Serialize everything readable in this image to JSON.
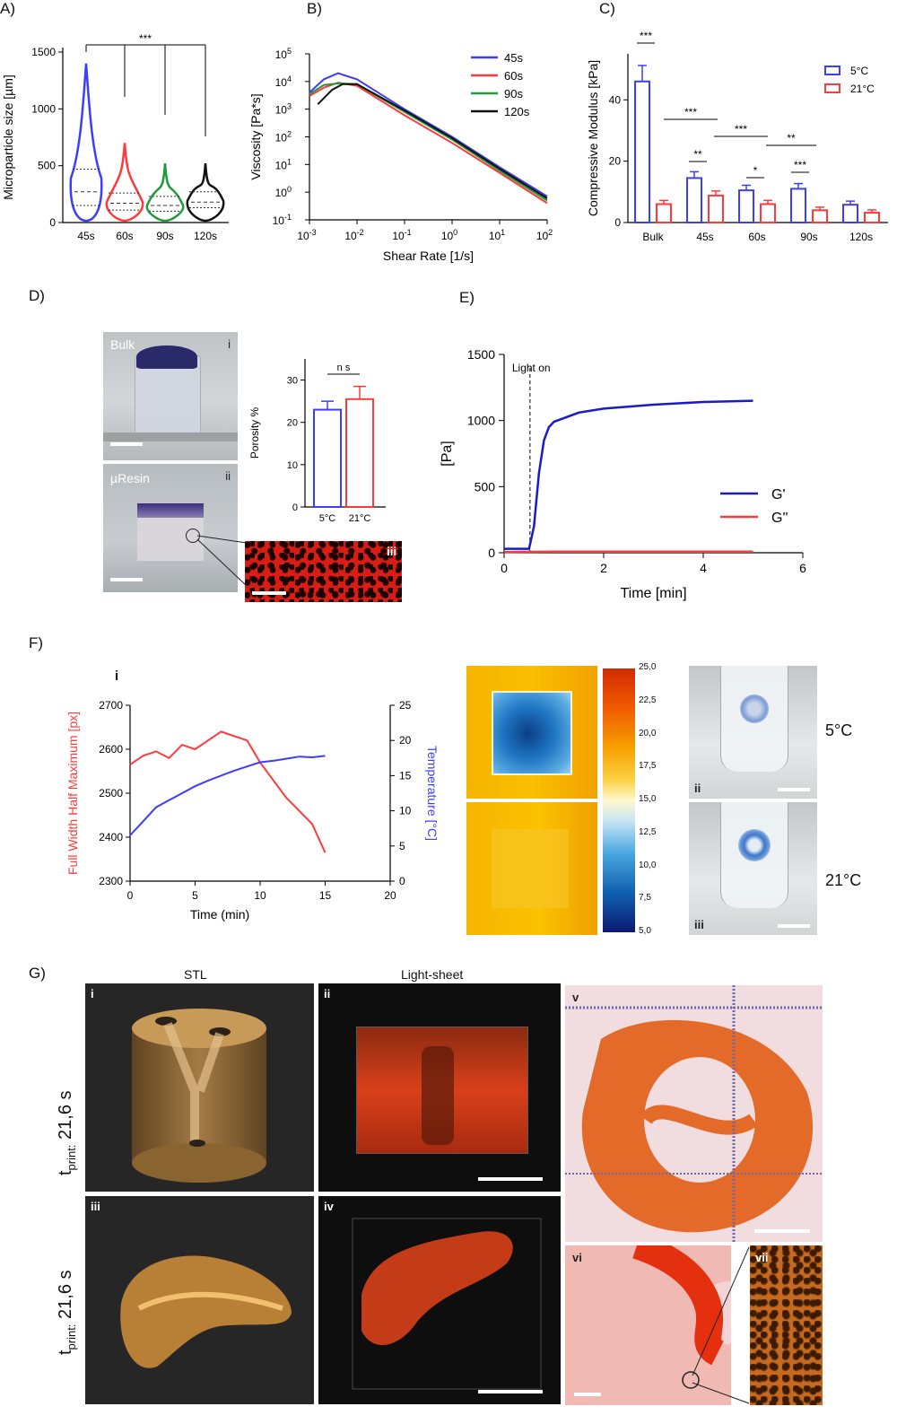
{
  "panel_labels": {
    "A": "A)",
    "B": "B)",
    "C": "C)",
    "D": "D)",
    "E": "E)",
    "F": "F)",
    "G": "G)"
  },
  "colors": {
    "blue": "#3d3dff",
    "red": "#ff3a3a",
    "green": "#1e9b3a",
    "black": "#111111",
    "darkblue": "#1a1ac8"
  },
  "panel_A": {
    "ylabel": "Microparticle size [µm]",
    "yticks": [
      "0",
      "500",
      "1000",
      "1500"
    ],
    "sig": "***",
    "categories": [
      "45s",
      "60s",
      "90s",
      "120s"
    ]
  },
  "panel_B": {
    "ylabel": "Viscosity [Pa*s]",
    "xlabel": "Shear Rate [1/s]",
    "yticks": [
      {
        "b": "10",
        "e": "5"
      },
      {
        "b": "10",
        "e": "4"
      },
      {
        "b": "10",
        "e": "3"
      },
      {
        "b": "10",
        "e": "2"
      },
      {
        "b": "10",
        "e": "1"
      },
      {
        "b": "10",
        "e": "0"
      },
      {
        "b": "10",
        "e": "-1"
      }
    ],
    "xticks": [
      {
        "b": "10",
        "e": "-3"
      },
      {
        "b": "10",
        "e": "-2"
      },
      {
        "b": "10",
        "e": "-1"
      },
      {
        "b": "10",
        "e": "0"
      },
      {
        "b": "10",
        "e": "1"
      },
      {
        "b": "10",
        "e": "2"
      }
    ],
    "legend": [
      "45s",
      "60s",
      "90s",
      "120s"
    ]
  },
  "panel_C": {
    "ylabel": "Compressive Modulus [kPa]",
    "yticks": [
      "0",
      "20",
      "40"
    ],
    "categories": [
      "Bulk",
      "45s",
      "60s",
      "90s",
      "120s"
    ],
    "legend": [
      "5°C",
      "21°C"
    ],
    "sig": [
      "***",
      "***",
      "**",
      "***",
      "*",
      "**",
      "***"
    ]
  },
  "panel_D": {
    "tag_i": "i",
    "tag_ii": "ii",
    "tag_iii": "iii",
    "bulk": "Bulk",
    "uresin": "µResin",
    "ylabel": "Porosity %",
    "yticks": [
      "0",
      "10",
      "20",
      "30"
    ],
    "categories": [
      "5°C",
      "21°C"
    ],
    "sig": "n s"
  },
  "panel_E": {
    "ylabel": "[Pa]",
    "xlabel": "Time [min]",
    "yticks": [
      "0",
      "500",
      "1000",
      "1500"
    ],
    "xticks": [
      "0",
      "2",
      "4",
      "6"
    ],
    "annotation": "Light on",
    "legend": [
      "G'",
      "G''"
    ]
  },
  "panel_F": {
    "tag_i": "i",
    "tag_ii": "ii",
    "tag_iii": "iii",
    "ylabel_left": "Full Width Half Maximum [px]",
    "ylabel_right": "Temperature [°C]",
    "xlabel": "Time (min)",
    "yticks_left": [
      "2300",
      "2400",
      "2500",
      "2600",
      "2700"
    ],
    "yticks_right": [
      "0",
      "5",
      "10",
      "15",
      "20",
      "25"
    ],
    "xticks": [
      "0",
      "5",
      "10",
      "15",
      "20"
    ],
    "colorbar_ticks": [
      "25,0",
      "22,5",
      "20,0",
      "17,5",
      "15,0",
      "12,5",
      "10,0",
      "7,5",
      "5,0"
    ],
    "temp_5": "5°C",
    "temp_21": "21°C"
  },
  "panel_G": {
    "col_stl": "STL",
    "col_ls": "Light-sheet",
    "tprint_row1": "21,6 s",
    "tprint_row2": "21,6 s",
    "tprint_prefix": "t",
    "tprint_sub": "print:",
    "tag_i": "i",
    "tag_ii": "ii",
    "tag_iii": "iii",
    "tag_iv": "iv",
    "tag_v": "v",
    "tag_vi": "vi",
    "tag_vii": "vii"
  },
  "chart_data": [
    {
      "panel": "A",
      "type": "violin",
      "categories": [
        "45s",
        "60s",
        "90s",
        "120s"
      ],
      "ylim": [
        0,
        1500
      ],
      "max": [
        1400,
        700,
        520,
        520
      ],
      "median": [
        270,
        170,
        150,
        180
      ],
      "q1": [
        150,
        110,
        100,
        130
      ],
      "q3": [
        470,
        260,
        230,
        270
      ],
      "ylabel": "Microparticle size [µm]"
    },
    {
      "panel": "B",
      "type": "line",
      "log_x": true,
      "log_y": true,
      "xlim": [
        0.001,
        100
      ],
      "ylim": [
        0.1,
        100000
      ],
      "xlabel": "Shear Rate [1/s]",
      "ylabel": "Viscosity [Pa*s]",
      "series": [
        {
          "name": "45s",
          "x": [
            0.001,
            0.002,
            0.004,
            0.01,
            0.1,
            1,
            10,
            100
          ],
          "y": [
            4000,
            12000,
            20000,
            12000,
            1000,
            100,
            8,
            0.7
          ]
        },
        {
          "name": "60s",
          "x": [
            0.001,
            0.002,
            0.004,
            0.01,
            0.1,
            1,
            10,
            100
          ],
          "y": [
            3000,
            6000,
            9000,
            7000,
            600,
            60,
            5,
            0.4
          ]
        },
        {
          "name": "90s",
          "x": [
            0.001,
            0.002,
            0.004,
            0.01,
            0.1,
            1,
            10,
            100
          ],
          "y": [
            3500,
            7500,
            8500,
            8000,
            800,
            80,
            6,
            0.5
          ]
        },
        {
          "name": "120s",
          "x": [
            0.0015,
            0.003,
            0.005,
            0.01,
            0.1,
            1,
            10,
            100
          ],
          "y": [
            1500,
            5000,
            8000,
            8000,
            900,
            90,
            7,
            0.6
          ]
        }
      ]
    },
    {
      "panel": "C",
      "type": "bar",
      "categories": [
        "Bulk",
        "45s",
        "60s",
        "90s",
        "120s"
      ],
      "ylim": [
        0,
        50
      ],
      "series": [
        {
          "name": "5°C",
          "values": [
            46,
            14.5,
            10.5,
            11,
            5.8
          ]
        },
        {
          "name": "21°C",
          "values": [
            6,
            8.8,
            6,
            4,
            3.2
          ]
        }
      ]
    },
    {
      "panel": "D",
      "type": "bar",
      "categories": [
        "5°C",
        "21°C"
      ],
      "ylim": [
        0,
        35
      ],
      "values": [
        23,
        25.5
      ]
    },
    {
      "panel": "E",
      "type": "line",
      "xlim": [
        0,
        6
      ],
      "ylim": [
        0,
        1500
      ],
      "xlabel": "Time [min]",
      "ylabel": "[Pa]",
      "series": [
        {
          "name": "G'",
          "x": [
            0,
            0.5,
            0.6,
            0.7,
            0.8,
            0.9,
            1.0,
            1.5,
            2,
            3,
            4,
            5
          ],
          "y": [
            30,
            30,
            200,
            600,
            850,
            950,
            990,
            1060,
            1090,
            1120,
            1140,
            1150
          ]
        },
        {
          "name": "G''",
          "x": [
            0,
            1,
            2,
            3,
            4,
            5
          ],
          "y": [
            5,
            8,
            8,
            8,
            8,
            8
          ]
        }
      ]
    },
    {
      "panel": "F",
      "type": "line",
      "xlim": [
        0,
        20
      ],
      "ylim": [
        2300,
        2700
      ],
      "ylim_right": [
        0,
        25
      ],
      "xlabel": "Time (min)",
      "series": [
        {
          "name": "Full Width Half Maximum [px]",
          "axis": "left",
          "x": [
            0,
            1,
            2,
            3,
            4,
            5,
            6,
            7,
            8,
            9,
            10,
            11,
            12,
            13,
            14,
            15
          ],
          "y": [
            2565,
            2585,
            2595,
            2580,
            2610,
            2600,
            2620,
            2640,
            2630,
            2620,
            2570,
            2530,
            2490,
            2460,
            2430,
            2365
          ]
        },
        {
          "name": "Temperature [°C]",
          "axis": "right",
          "x": [
            0,
            1,
            2,
            3,
            4,
            5,
            6,
            7,
            8,
            9,
            10,
            11,
            12,
            13,
            14,
            15
          ],
          "y": [
            6.5,
            8.5,
            10.5,
            11.5,
            12.5,
            13.5,
            14.3,
            15.0,
            15.7,
            16.3,
            16.9,
            17.1,
            17.4,
            17.7,
            17.6,
            17.8
          ]
        }
      ]
    }
  ]
}
